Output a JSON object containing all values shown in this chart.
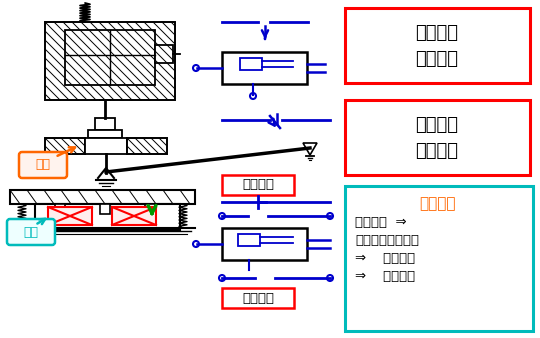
{
  "box1_label": "常开触头\n延时闭合",
  "box2_label": "常闭触头\n延时打开",
  "box3_label": "常闭触头",
  "box4_label": "常开触头",
  "action_title": "动作过程",
  "action_line1": "线圈通电  ⇒",
  "action_line2": "衔铁吸合（向下）",
  "action_line3": "⇒    连杆动作",
  "action_line4": "⇒    触头动作",
  "label_yatie": "衔铁",
  "label_xianquan": "线圈",
  "blue": "#0000cc",
  "red": "#ff0000",
  "teal": "#00bbbb",
  "orange": "#ff6600",
  "green": "#009900",
  "black": "#000000",
  "white": "#ffffff"
}
